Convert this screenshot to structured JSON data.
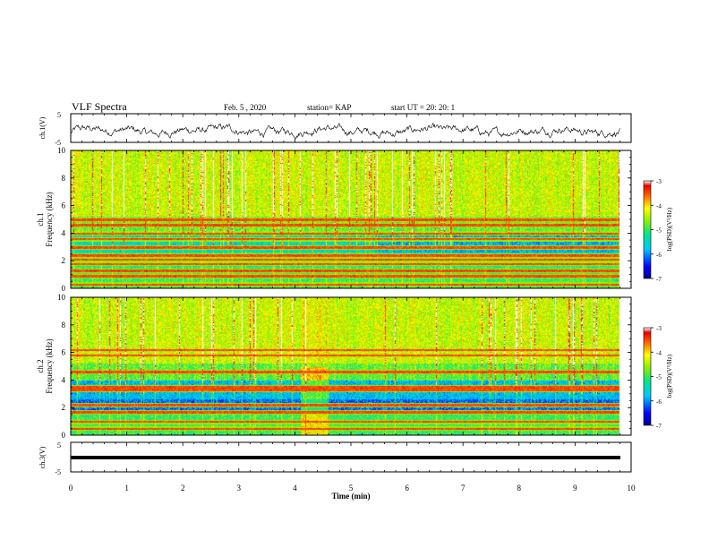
{
  "header": {
    "title": "VLF Spectra",
    "date": "Feb. 5  , 2020",
    "station": "station= KAP",
    "start_ut": "start  UT =   20: 20: 1"
  },
  "chart_data": [
    {
      "type": "line",
      "name": "ch1-waveform",
      "ylabel": "ch.1(V)",
      "ytick_labels": [
        "5",
        "-5"
      ],
      "ylim": [
        -5,
        5
      ],
      "xlim": [
        0,
        10
      ],
      "description_values": "noisy voltage trace around -1 V with amplitude about ±2.5 V from 0 to 9.8 min"
    },
    {
      "type": "heatmap",
      "name": "ch1-spectrogram",
      "ylabel": "ch.1\nFrequency  (kHz)",
      "ylabel_line1": "ch.1",
      "ylabel_line2": "Frequency  (kHz)",
      "ytick_labels": [
        "0",
        "2",
        "4",
        "6",
        "8",
        "10"
      ],
      "ylim": [
        0,
        10
      ],
      "xlim": [
        0,
        10
      ],
      "data_xmax": 9.8,
      "colorbar": {
        "label": "log(PSD)(V²/Hz)",
        "tick_labels": [
          "-3",
          "-4",
          "-5",
          "-6",
          "-7"
        ],
        "range": [
          -7,
          -3
        ]
      },
      "bands_khz": [
        0.3,
        0.9,
        1.3,
        1.8,
        2.1,
        2.4,
        3.0,
        3.6,
        4.0,
        4.6,
        5.0
      ]
    },
    {
      "type": "heatmap",
      "name": "ch2-spectrogram",
      "ylabel_line1": "ch.2",
      "ylabel_line2": "Frequency  (kHz)",
      "ytick_labels": [
        "0",
        "2",
        "4",
        "6",
        "8",
        "10"
      ],
      "ylim": [
        0,
        10
      ],
      "xlim": [
        0,
        10
      ],
      "data_xmax": 9.8,
      "colorbar": {
        "label": "log(PSD)(V²/Hz)",
        "tick_labels": [
          "-3",
          "-4",
          "-5",
          "-6",
          "-7"
        ],
        "range": [
          -7,
          -3
        ]
      },
      "bands_khz": [
        0.5,
        1.0,
        1.7,
        2.2,
        3.3,
        3.5,
        4.6,
        5.8,
        6.2
      ]
    },
    {
      "type": "line",
      "name": "ch3-waveform",
      "ylabel": "ch.3(V)",
      "ytick_labels": [
        "5",
        "-5"
      ],
      "ylim": [
        -5,
        5
      ],
      "xlim": [
        0,
        10
      ],
      "constant_value": 0
    }
  ],
  "xaxis": {
    "label": "Time  (min)",
    "tick_labels": [
      "0",
      "1",
      "2",
      "3",
      "4",
      "5",
      "6",
      "7",
      "8",
      "9",
      "10"
    ]
  },
  "colors": {
    "frame": "#000000",
    "background": "#ffffff"
  }
}
